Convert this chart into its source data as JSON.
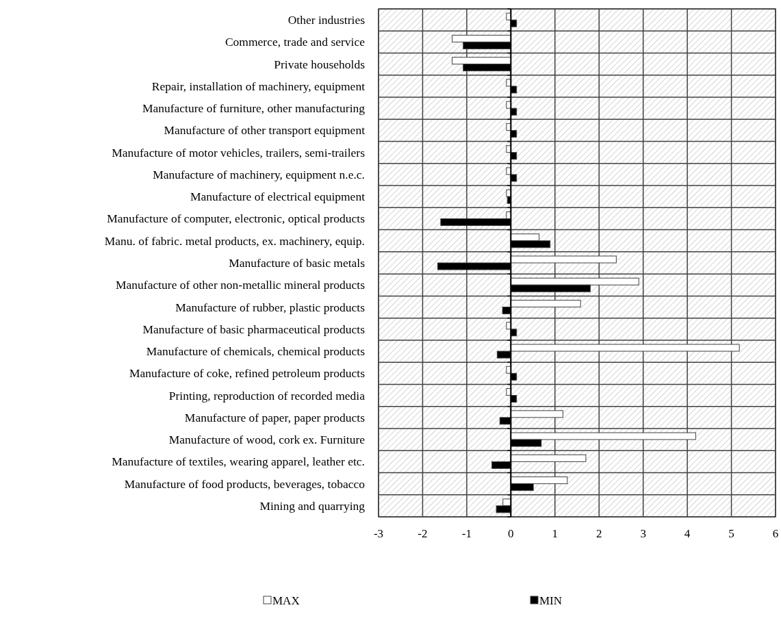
{
  "chart_data": {
    "type": "bar",
    "orientation": "horizontal",
    "categories": [
      "Other industries",
      "Commerce, trade and service",
      "Private households",
      "Repair, installation of machinery, equipment",
      "Manufacture of furniture, other manufacturing",
      "Manufacture of other transport equipment",
      "Manufacture of motor vehicles, trailers, semi-trailers",
      "Manufacture of machinery, equipment n.e.c.",
      "Manufacture of electrical equipment",
      "Manufacture of computer, electronic, optical products",
      "Manu. of fabric. metal products, ex. machinery, equip.",
      "Manufacture of basic metals",
      "Manufacture of other non-metallic mineral products",
      "Manufacture of rubber, plastic products",
      "Manufacture of basic pharmaceutical products",
      "Manufacture of chemicals, chemical products",
      "Manufacture of coke, refined petroleum products",
      "Printing, reproduction of recorded media",
      "Manufacture of paper, paper products",
      "Manufacture of wood, cork ex. Furniture",
      "Manufacture of textiles, wearing apparel, leather etc.",
      "Manufacture of food products, beverages, tobacco",
      "Mining and quarrying"
    ],
    "series": [
      {
        "name": "MAX",
        "color": "#ffffff",
        "values": [
          -0.1,
          -1.33,
          -1.33,
          -0.1,
          -0.1,
          -0.1,
          -0.1,
          -0.1,
          -0.1,
          -0.1,
          0.64,
          2.39,
          2.9,
          1.58,
          -0.1,
          5.18,
          -0.1,
          -0.1,
          1.18,
          4.19,
          1.7,
          1.28,
          -0.18
        ]
      },
      {
        "name": "MIN",
        "color": "#000000",
        "values": [
          0.13,
          -1.08,
          -1.08,
          0.13,
          0.13,
          0.13,
          0.13,
          0.13,
          -0.08,
          -1.59,
          0.89,
          -1.66,
          1.8,
          -0.19,
          0.13,
          -0.31,
          0.13,
          0.13,
          -0.25,
          0.69,
          -0.43,
          0.51,
          -0.33
        ]
      }
    ],
    "xlim": [
      -3,
      6
    ],
    "xticks": [
      -3,
      -2,
      -1,
      0,
      1,
      2,
      3,
      4,
      5,
      6
    ],
    "grid": true,
    "legend": "bottom"
  }
}
